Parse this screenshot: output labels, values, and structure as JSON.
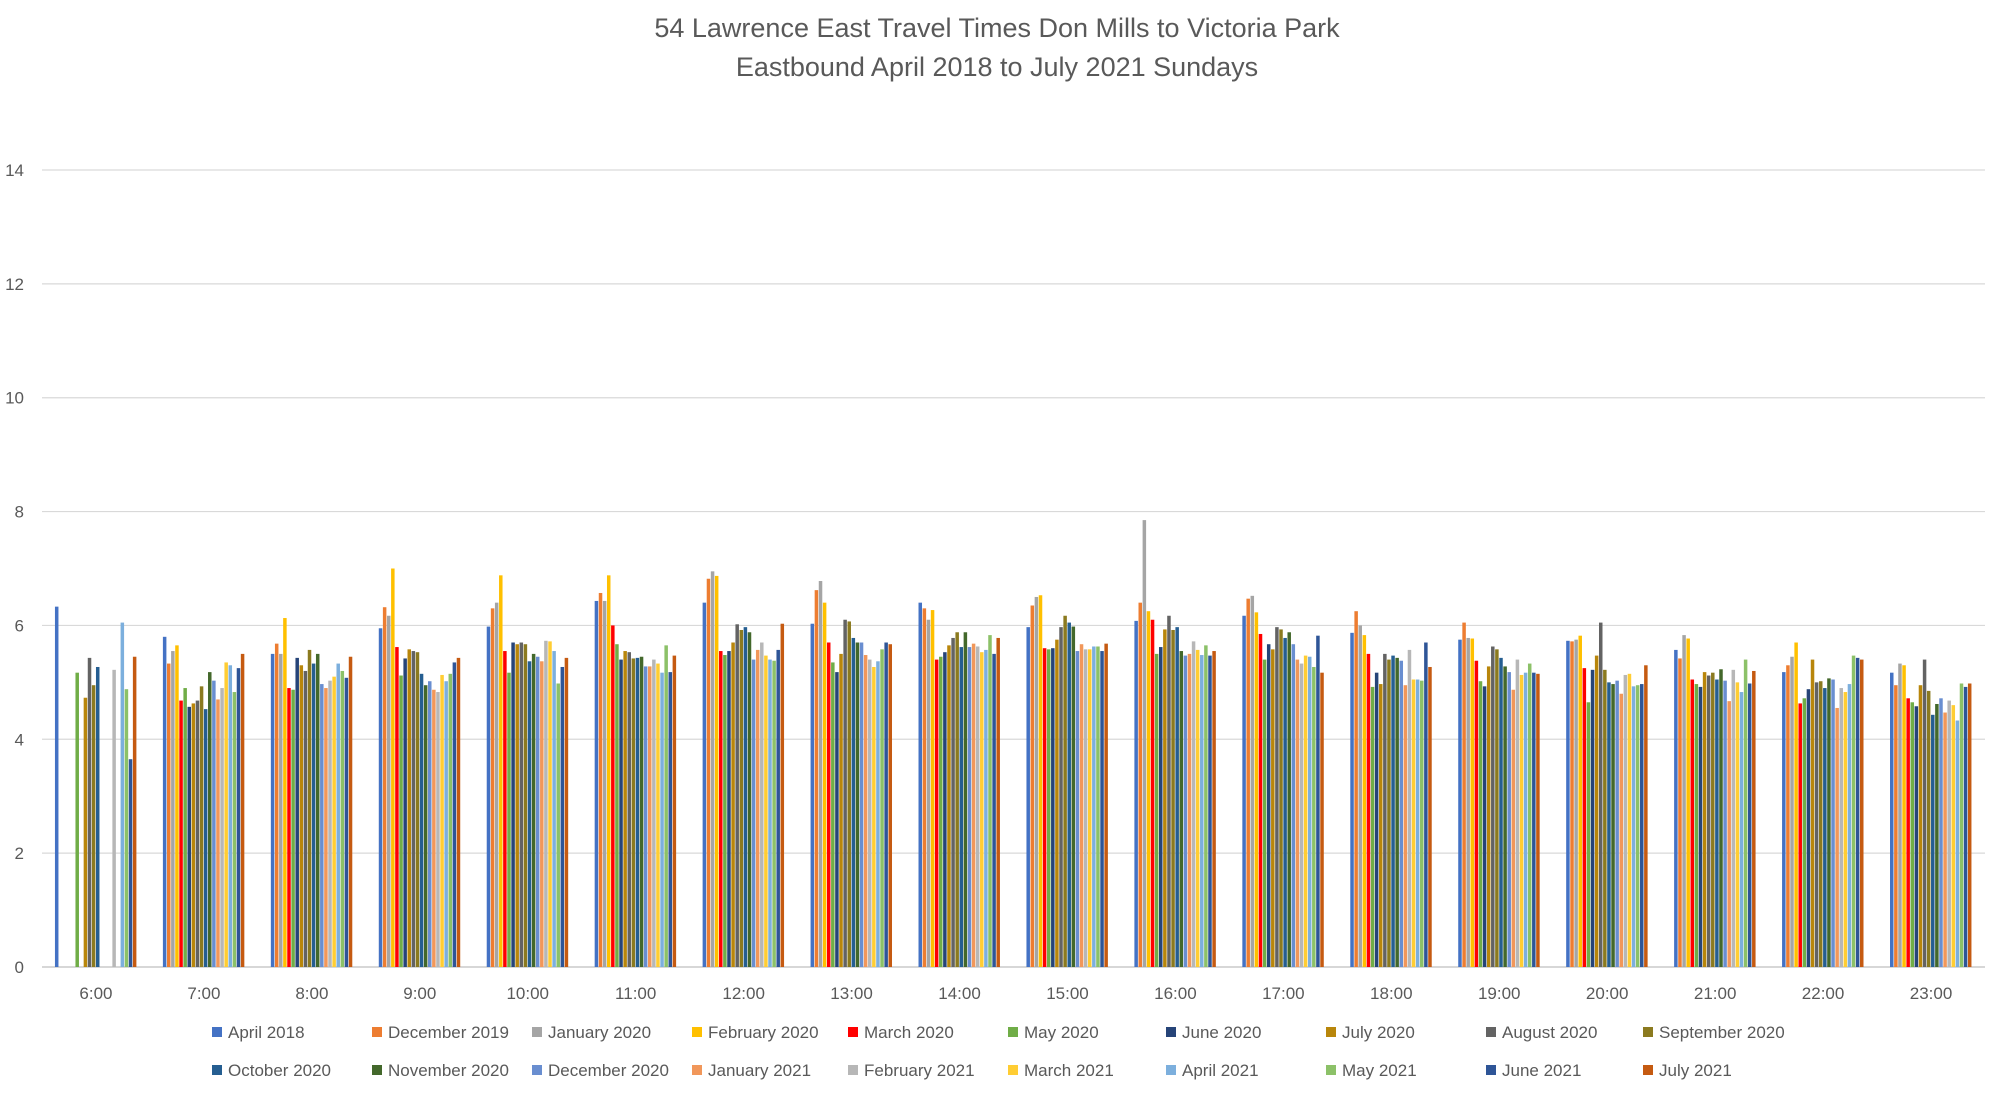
{
  "chart_data": {
    "type": "bar",
    "title": "54 Lawrence East Travel Times Don Mills to Victoria Park",
    "subtitle": "Eastbound April 2018 to July 2021 Sundays",
    "xlabel": "",
    "ylabel": "",
    "ylim": [
      0,
      14
    ],
    "yticks": [
      0,
      2,
      4,
      6,
      8,
      10,
      12,
      14
    ],
    "grid": true,
    "legend_position": "bottom",
    "categories": [
      "6:00",
      "7:00",
      "8:00",
      "9:00",
      "10:00",
      "11:00",
      "12:00",
      "13:00",
      "14:00",
      "15:00",
      "16:00",
      "17:00",
      "18:00",
      "19:00",
      "20:00",
      "21:00",
      "22:00",
      "23:00"
    ],
    "series": [
      {
        "name": "April 2018",
        "color": "#4472C4",
        "values": [
          6.33,
          5.8,
          5.5,
          5.95,
          5.98,
          6.43,
          6.4,
          6.03,
          6.4,
          5.97,
          6.08,
          6.17,
          5.87,
          5.75,
          5.73,
          5.57,
          5.18,
          5.17
        ]
      },
      {
        "name": "December 2019",
        "color": "#ED7D31",
        "values": [
          0,
          5.33,
          5.68,
          6.32,
          6.3,
          6.57,
          6.82,
          6.62,
          6.3,
          6.35,
          6.4,
          6.47,
          6.25,
          6.05,
          5.72,
          5.42,
          5.3,
          4.95
        ]
      },
      {
        "name": "January 2020",
        "color": "#A5A5A5",
        "values": [
          0,
          5.55,
          5.5,
          6.17,
          6.4,
          6.43,
          6.95,
          6.78,
          6.1,
          6.5,
          7.85,
          6.52,
          6.0,
          5.78,
          5.75,
          5.83,
          5.45,
          5.33
        ]
      },
      {
        "name": "February 2020",
        "color": "#FFC000",
        "values": [
          0,
          5.65,
          6.13,
          7.0,
          6.88,
          6.88,
          6.87,
          6.4,
          6.27,
          6.53,
          6.25,
          6.23,
          5.83,
          5.77,
          5.82,
          5.77,
          5.7,
          5.3
        ]
      },
      {
        "name": "March 2020",
        "color": "#FF0000",
        "values": [
          0,
          4.68,
          4.9,
          5.62,
          5.55,
          6.0,
          5.55,
          5.7,
          5.4,
          5.6,
          6.1,
          5.85,
          5.5,
          5.38,
          5.25,
          5.05,
          4.63,
          4.72
        ]
      },
      {
        "name": "May 2020",
        "color": "#70AD47",
        "values": [
          5.17,
          4.9,
          4.87,
          5.12,
          5.17,
          5.67,
          5.48,
          5.35,
          5.45,
          5.58,
          5.5,
          5.4,
          4.92,
          5.02,
          4.65,
          4.97,
          4.72,
          4.65
        ]
      },
      {
        "name": "June 2020",
        "color": "#264478",
        "values": [
          0,
          4.57,
          5.43,
          5.42,
          5.7,
          5.4,
          5.55,
          5.18,
          5.53,
          5.6,
          5.62,
          5.67,
          5.17,
          4.93,
          5.22,
          4.92,
          4.88,
          4.58
        ]
      },
      {
        "name": "July 2020",
        "color": "#B8860B",
        "values": [
          4.73,
          4.63,
          5.3,
          5.58,
          5.67,
          5.55,
          5.7,
          5.5,
          5.65,
          5.75,
          5.93,
          5.58,
          4.97,
          5.28,
          5.47,
          5.18,
          5.4,
          4.95
        ]
      },
      {
        "name": "August 2020",
        "color": "#636363",
        "values": [
          5.43,
          4.68,
          5.2,
          5.55,
          5.7,
          5.53,
          6.02,
          6.1,
          5.78,
          5.97,
          6.17,
          5.97,
          5.5,
          5.63,
          6.05,
          5.12,
          5.0,
          5.4
        ]
      },
      {
        "name": "September 2020",
        "color": "#8B7A1F",
        "values": [
          4.95,
          4.93,
          5.57,
          5.53,
          5.67,
          5.42,
          5.92,
          6.07,
          5.88,
          6.17,
          5.92,
          5.93,
          5.4,
          5.58,
          5.22,
          5.17,
          5.02,
          4.85
        ]
      },
      {
        "name": "October 2020",
        "color": "#255E91",
        "values": [
          5.27,
          4.53,
          5.33,
          5.15,
          5.37,
          5.43,
          5.97,
          5.78,
          5.62,
          6.05,
          5.97,
          5.78,
          5.47,
          5.43,
          5.0,
          5.05,
          4.9,
          4.43
        ]
      },
      {
        "name": "November 2020",
        "color": "#43682B",
        "values": [
          0,
          5.18,
          5.5,
          4.95,
          5.5,
          5.45,
          5.88,
          5.7,
          5.88,
          5.98,
          5.55,
          5.88,
          5.43,
          5.28,
          4.97,
          5.23,
          5.07,
          4.62
        ]
      },
      {
        "name": "December 2020",
        "color": "#698ED0",
        "values": [
          0,
          5.03,
          4.97,
          5.02,
          5.45,
          5.28,
          5.4,
          5.7,
          5.62,
          5.55,
          5.47,
          5.67,
          5.38,
          5.18,
          5.03,
          5.03,
          5.05,
          4.72
        ]
      },
      {
        "name": "January 2021",
        "color": "#F1975A",
        "values": [
          0,
          4.7,
          4.9,
          4.87,
          5.37,
          5.28,
          5.57,
          5.48,
          5.68,
          5.67,
          5.5,
          5.4,
          4.95,
          4.87,
          4.8,
          4.67,
          4.55,
          4.47
        ]
      },
      {
        "name": "February 2021",
        "color": "#B7B7B7",
        "values": [
          5.22,
          4.9,
          5.03,
          4.83,
          5.73,
          5.4,
          5.7,
          5.4,
          5.63,
          5.58,
          5.72,
          5.33,
          5.57,
          5.4,
          5.13,
          5.22,
          4.9,
          4.68
        ]
      },
      {
        "name": "March 2021",
        "color": "#FFCD33",
        "values": [
          0,
          5.35,
          5.1,
          5.13,
          5.72,
          5.33,
          5.47,
          5.27,
          5.53,
          5.58,
          5.57,
          5.47,
          5.05,
          5.13,
          5.15,
          5.0,
          4.83,
          4.6
        ]
      },
      {
        "name": "April 2021",
        "color": "#7CAFDD",
        "values": [
          6.05,
          5.3,
          5.33,
          5.02,
          5.55,
          5.17,
          5.4,
          5.37,
          5.57,
          5.63,
          5.48,
          5.45,
          5.05,
          5.17,
          4.93,
          4.83,
          4.97,
          4.33
        ]
      },
      {
        "name": "May 2021",
        "color": "#8CC168",
        "values": [
          4.88,
          4.83,
          5.2,
          5.15,
          4.98,
          5.65,
          5.38,
          5.58,
          5.83,
          5.63,
          5.65,
          5.27,
          5.03,
          5.33,
          4.95,
          5.4,
          5.47,
          4.98
        ]
      },
      {
        "name": "June 2021",
        "color": "#2E5597",
        "values": [
          3.65,
          5.25,
          5.08,
          5.35,
          5.27,
          5.18,
          5.57,
          5.7,
          5.5,
          5.55,
          5.47,
          5.82,
          5.7,
          5.17,
          4.97,
          4.98,
          5.43,
          4.92
        ]
      },
      {
        "name": "July 2021",
        "color": "#C55A11",
        "values": [
          5.45,
          5.5,
          5.45,
          5.43,
          5.43,
          5.47,
          6.03,
          5.67,
          5.78,
          5.68,
          5.55,
          5.17,
          5.27,
          5.15,
          5.3,
          5.2,
          5.4,
          4.98
        ]
      }
    ]
  }
}
